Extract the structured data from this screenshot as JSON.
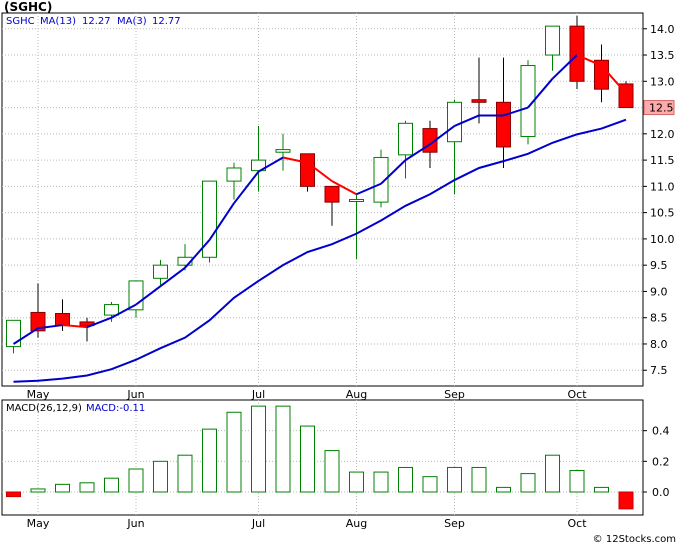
{
  "header": {
    "title": "(SGHC)",
    "watermark": "© 12Stocks.com"
  },
  "price_panel": {
    "symbol": "SGHC",
    "ma_fast_label": "MA(13)",
    "ma_fast_value": "12.27",
    "ma_slow_label": "MA(3)",
    "ma_slow_value": "12.77",
    "last_price_tag": "12.5"
  },
  "macd_panel": {
    "label": "MACD(26,12,9)",
    "value_label": "MACD:-0.11"
  },
  "colors": {
    "up": "#008000",
    "down": "#ff0000",
    "ma_fast": "#0000cc",
    "ma_slow": "#ff0000",
    "grid": "#bbbbbb",
    "tag_bg": "#ffaaaa",
    "legend_text": "#0000cc"
  },
  "chart_data": [
    {
      "type": "candlestick",
      "title": "(SGHC)",
      "ylim": [
        7.2,
        14.3
      ],
      "y_ticks": [
        7.5,
        8.0,
        8.5,
        9.0,
        9.5,
        10.0,
        10.5,
        11.0,
        11.5,
        12.0,
        12.5,
        13.0,
        13.5,
        14.0
      ],
      "y_tick_labels": [
        "7.5",
        "8.0",
        "8.5",
        "9.0",
        "9.5",
        "10.0",
        "10.5",
        "11.0",
        "11.5",
        "12.0",
        "12.5",
        "13.0",
        "13.5",
        "14.0"
      ],
      "x_month_labels": [
        {
          "label": "May",
          "index": 1
        },
        {
          "label": "Jun",
          "index": 5
        },
        {
          "label": "Jul",
          "index": 10
        },
        {
          "label": "Aug",
          "index": 14
        },
        {
          "label": "Sep",
          "index": 18
        },
        {
          "label": "Oct",
          "index": 23
        }
      ],
      "candles": [
        {
          "o": 7.95,
          "h": 8.45,
          "l": 7.82,
          "c": 8.45
        },
        {
          "o": 8.6,
          "h": 9.15,
          "l": 8.12,
          "c": 8.25
        },
        {
          "o": 8.58,
          "h": 8.85,
          "l": 8.25,
          "c": 8.35
        },
        {
          "o": 8.42,
          "h": 8.5,
          "l": 8.05,
          "c": 8.35
        },
        {
          "o": 8.55,
          "h": 8.8,
          "l": 8.42,
          "c": 8.75
        },
        {
          "o": 8.65,
          "h": 9.2,
          "l": 8.5,
          "c": 9.2
        },
        {
          "o": 9.25,
          "h": 9.6,
          "l": 9.1,
          "c": 9.5
        },
        {
          "o": 9.5,
          "h": 9.9,
          "l": 9.4,
          "c": 9.65
        },
        {
          "o": 9.65,
          "h": 11.1,
          "l": 9.55,
          "c": 11.1
        },
        {
          "o": 11.1,
          "h": 11.45,
          "l": 10.75,
          "c": 11.35
        },
        {
          "o": 11.3,
          "h": 12.15,
          "l": 10.9,
          "c": 11.5
        },
        {
          "o": 11.65,
          "h": 12.0,
          "l": 11.3,
          "c": 11.7
        },
        {
          "o": 11.62,
          "h": 11.62,
          "l": 10.9,
          "c": 11.0
        },
        {
          "o": 11.0,
          "h": 11.0,
          "l": 10.25,
          "c": 10.7
        },
        {
          "o": 10.72,
          "h": 10.85,
          "l": 9.62,
          "c": 10.75
        },
        {
          "o": 10.7,
          "h": 11.7,
          "l": 10.6,
          "c": 11.55
        },
        {
          "o": 11.6,
          "h": 12.25,
          "l": 11.15,
          "c": 12.2
        },
        {
          "o": 12.1,
          "h": 12.25,
          "l": 11.35,
          "c": 11.65
        },
        {
          "o": 11.85,
          "h": 12.65,
          "l": 10.85,
          "c": 12.6
        },
        {
          "o": 12.65,
          "h": 13.45,
          "l": 12.2,
          "c": 12.6
        },
        {
          "o": 12.6,
          "h": 13.45,
          "l": 11.35,
          "c": 11.75
        },
        {
          "o": 11.95,
          "h": 13.4,
          "l": 11.8,
          "c": 13.3
        },
        {
          "o": 13.5,
          "h": 14.05,
          "l": 13.2,
          "c": 14.05
        },
        {
          "o": 14.05,
          "h": 14.25,
          "l": 12.85,
          "c": 13.0
        },
        {
          "o": 13.4,
          "h": 13.7,
          "l": 12.6,
          "c": 12.85
        },
        {
          "o": 12.95,
          "h": 13.0,
          "l": 12.5,
          "c": 12.5
        }
      ],
      "series": [
        {
          "name": "MA(13)",
          "values": [
            7.28,
            7.3,
            7.34,
            7.4,
            7.52,
            7.7,
            7.92,
            8.12,
            8.45,
            8.88,
            9.2,
            9.5,
            9.75,
            9.9,
            10.1,
            10.35,
            10.63,
            10.85,
            11.12,
            11.35,
            11.48,
            11.62,
            11.83,
            11.99,
            12.1,
            12.27
          ]
        },
        {
          "name": "MA(3)",
          "values": [
            8.0,
            8.3,
            8.36,
            8.32,
            8.5,
            8.75,
            9.1,
            9.45,
            9.98,
            10.68,
            11.28,
            11.55,
            11.45,
            11.1,
            10.85,
            11.05,
            11.5,
            11.8,
            12.15,
            12.35,
            12.35,
            12.5,
            13.05,
            13.5,
            13.3,
            12.77
          ]
        }
      ]
    },
    {
      "type": "bar",
      "title": "MACD(26,12,9)",
      "ylim": [
        -0.15,
        0.6
      ],
      "y_ticks": [
        0.0,
        0.2,
        0.4
      ],
      "y_tick_labels": [
        "0.0",
        "0.2",
        "0.4"
      ],
      "x_month_labels": [
        {
          "label": "May",
          "index": 1
        },
        {
          "label": "Jun",
          "index": 5
        },
        {
          "label": "Jul",
          "index": 10
        },
        {
          "label": "Aug",
          "index": 14
        },
        {
          "label": "Sep",
          "index": 18
        },
        {
          "label": "Oct",
          "index": 23
        }
      ],
      "values": [
        -0.03,
        0.02,
        0.05,
        0.06,
        0.09,
        0.15,
        0.2,
        0.24,
        0.41,
        0.52,
        0.56,
        0.56,
        0.43,
        0.27,
        0.13,
        0.13,
        0.16,
        0.1,
        0.16,
        0.16,
        0.03,
        0.12,
        0.24,
        0.14,
        0.03,
        -0.11
      ]
    }
  ]
}
